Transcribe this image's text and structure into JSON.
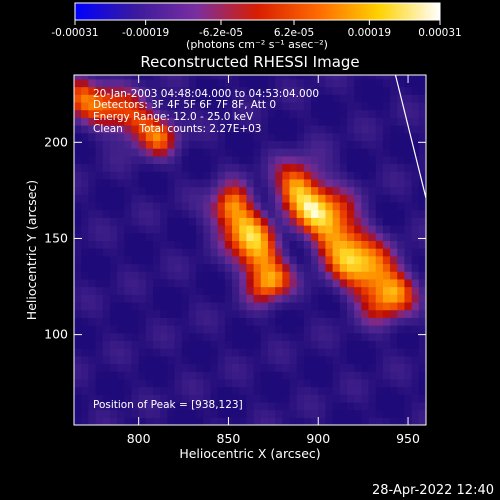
{
  "chart_data": {
    "type": "heatmap",
    "title": "Reconstructed RHESSI Image",
    "xlabel": "Heliocentric X (arcsec)",
    "ylabel": "Heliocentric Y (arcsec)",
    "xlim": [
      764,
      960
    ],
    "ylim": [
      53,
      235
    ],
    "x_ticks": [
      800,
      850,
      900,
      950
    ],
    "y_ticks": [
      100,
      150,
      200
    ],
    "colorbar": {
      "range": [
        -0.00031,
        0.00031
      ],
      "tick_labels": [
        "-0.00031",
        "-0.00019",
        "-6.2e-05",
        "6.2e-05",
        "0.00019",
        "0.00031"
      ],
      "tick_values": [
        -0.00031,
        -0.00019,
        -6.2e-05,
        6.2e-05,
        0.00019,
        0.00031
      ],
      "units_label": "(photons cm⁻² s⁻¹ asec⁻²)",
      "colors": [
        "#0000ff",
        "#3b1a9e",
        "#7a2ea0",
        "#d81e00",
        "#ff6a00",
        "#ffd200",
        "#ffffff"
      ]
    },
    "annotations": [
      "20-Jan-2003 04:48:04.000 to 04:53:04.000",
      "Detectors: 3F 4F 5F 6F 7F 8F, Att 0",
      "Energy Range: 12.0 - 25.0 keV",
      "Clean     Total counts: 2.27E+03"
    ],
    "peak_label": "Position of Peak = [938,123]",
    "peak_position": [
      938,
      123
    ],
    "bright_ridges": [
      {
        "x": [
          852,
          862,
          872
        ],
        "y": [
          165,
          150,
          130
        ]
      },
      {
        "x": [
          890,
          905,
          920,
          938
        ],
        "y": [
          175,
          160,
          140,
          123
        ]
      },
      {
        "x": [
          770,
          790,
          810
        ],
        "y": [
          225,
          215,
          205
        ]
      }
    ],
    "limb_line": {
      "x": [
        943,
        960
      ],
      "y": [
        235,
        171
      ]
    },
    "grid": false
  },
  "footer_timestamp": "28-Apr-2022 12:40"
}
